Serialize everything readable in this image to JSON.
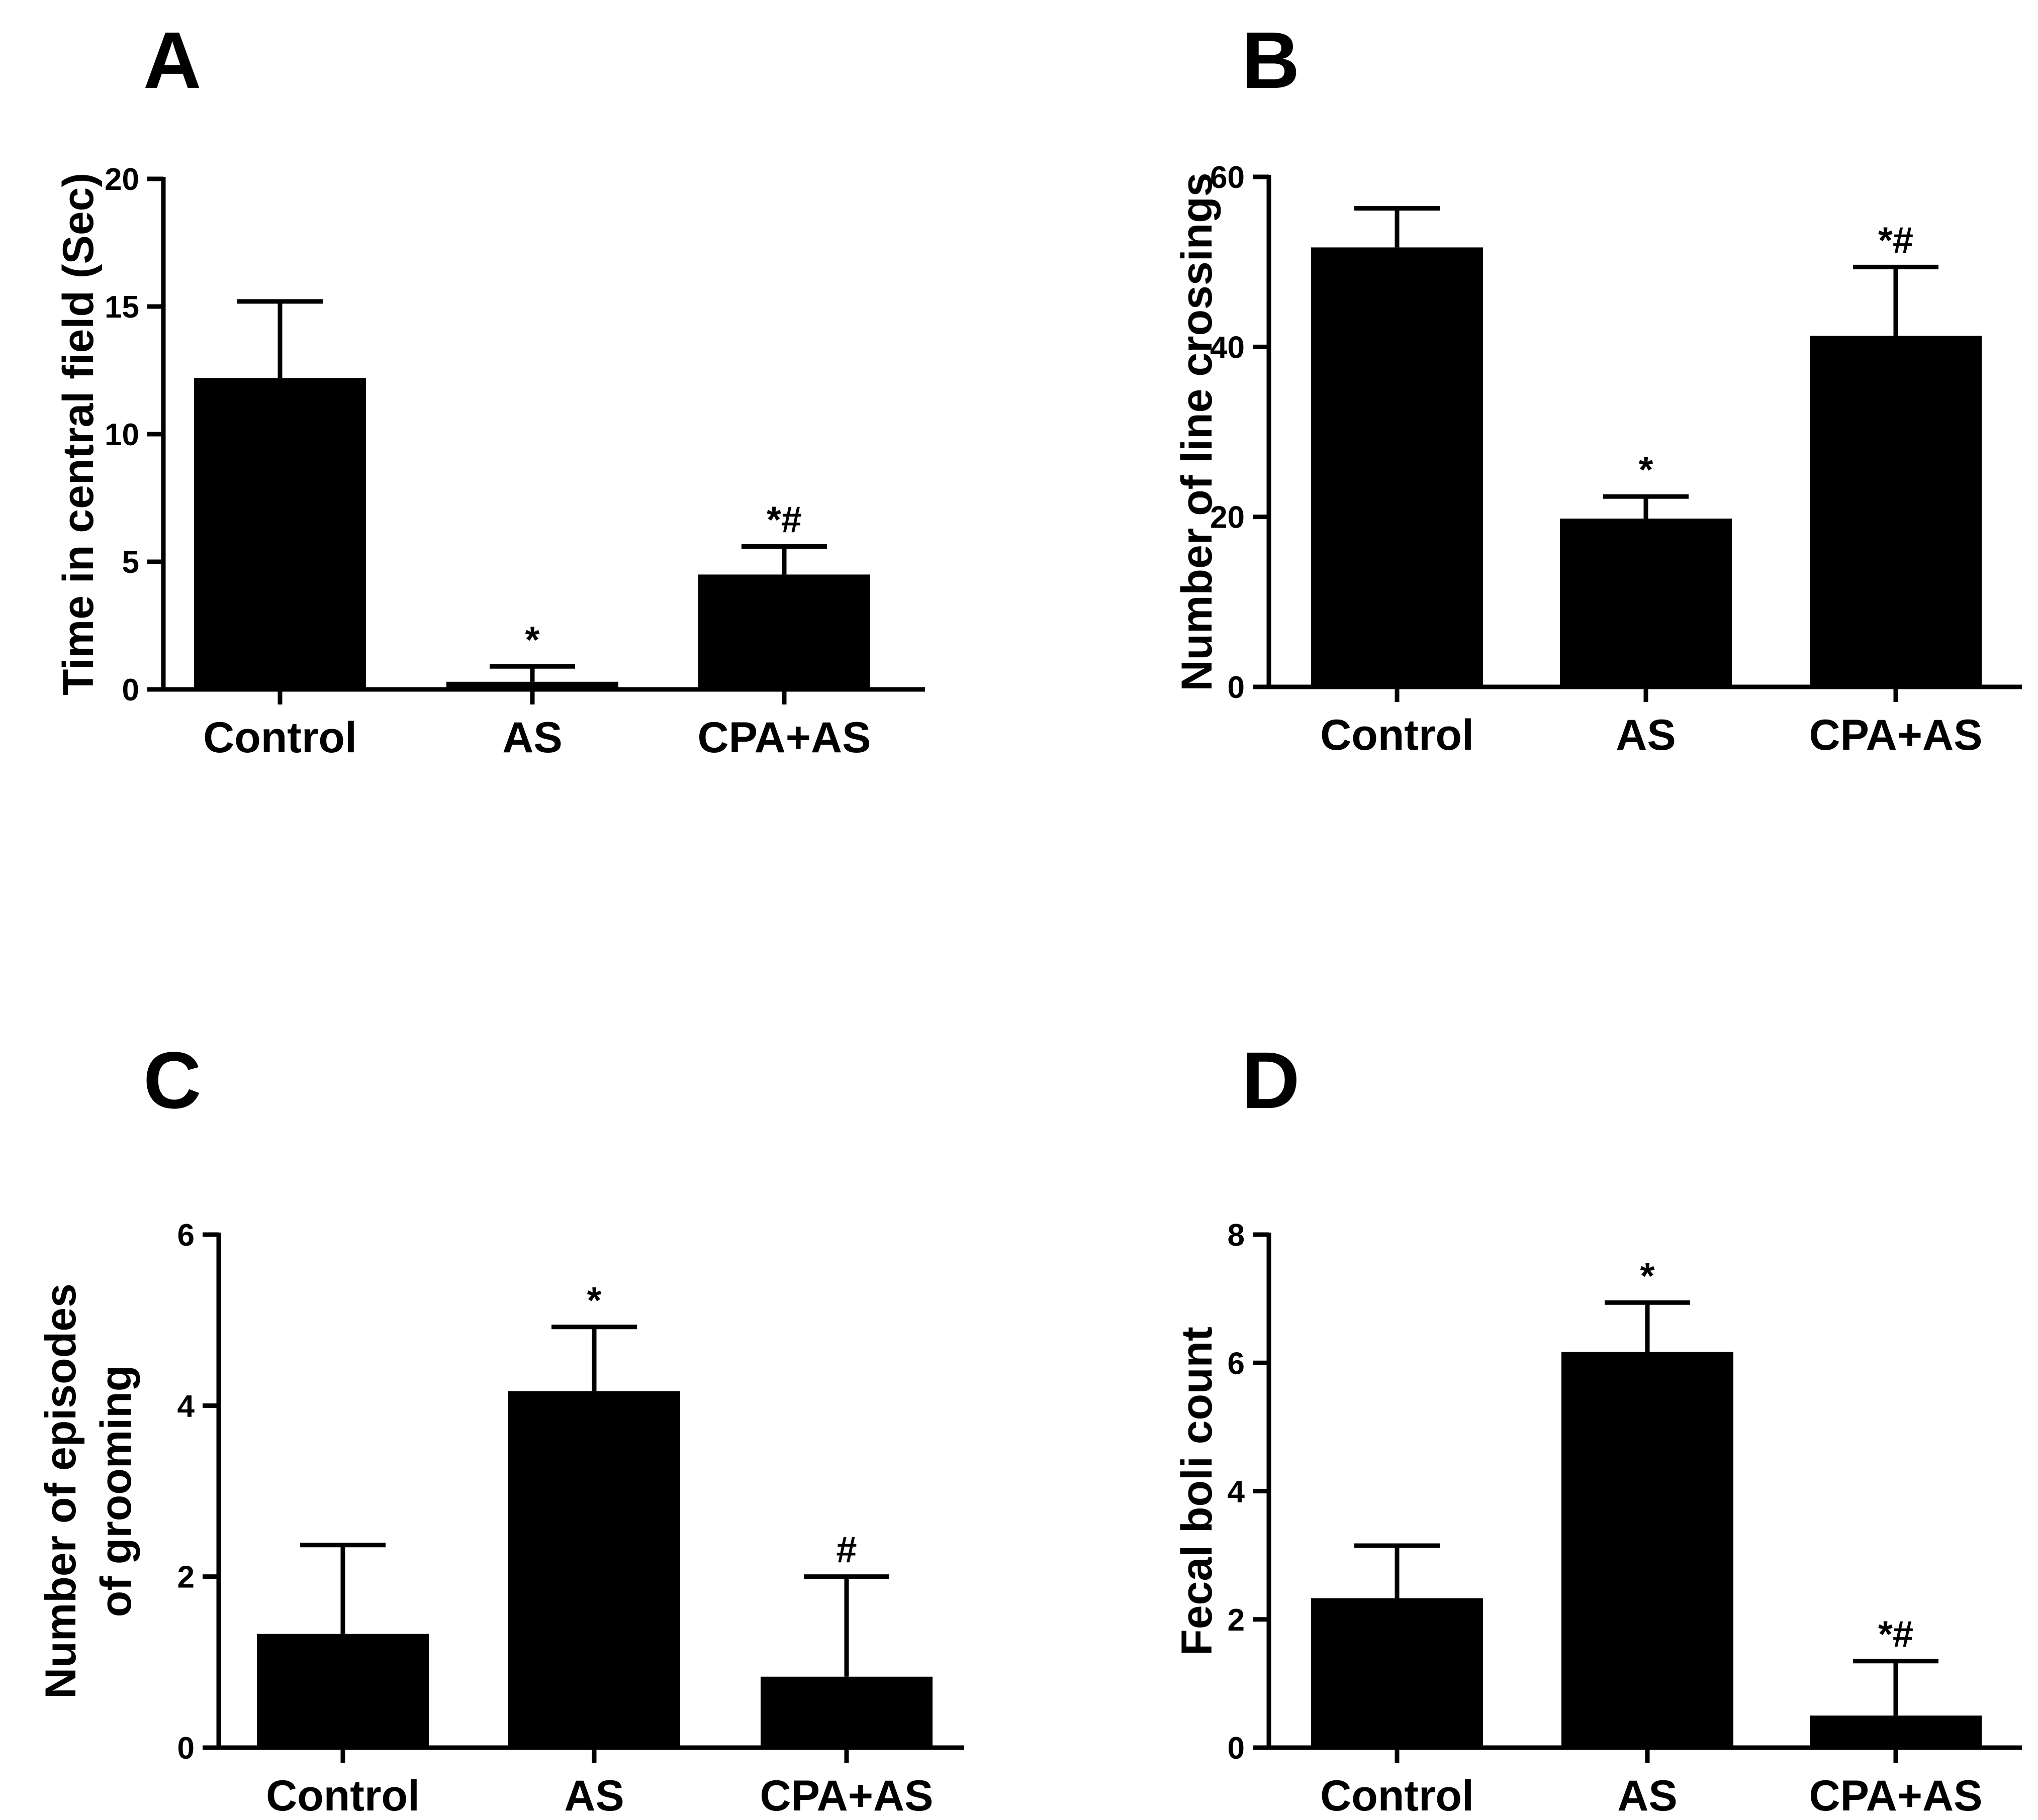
{
  "figure_colors": {
    "bar": "#000000",
    "axis": "#000000",
    "background": "#ffffff"
  },
  "chart_data": [
    {
      "type": "bar",
      "panel": "A",
      "categories": [
        "Control",
        "AS",
        "CPA+AS"
      ],
      "values": [
        12.2,
        0.3,
        4.5
      ],
      "errors": [
        3.0,
        0.6,
        1.1
      ],
      "significance": [
        "",
        "*",
        "*#"
      ],
      "ylabel_lines": [
        "Time in central field (Sec)"
      ],
      "xlabel": "",
      "ylim": [
        0,
        20
      ],
      "yticks": [
        0,
        5,
        10,
        15,
        20
      ],
      "ytick_labels": [
        "0",
        "5",
        "10",
        "15",
        "20"
      ],
      "grid": false,
      "legend": "none"
    },
    {
      "type": "bar",
      "panel": "B",
      "categories": [
        "Control",
        "AS",
        "CPA+AS"
      ],
      "values": [
        51.7,
        19.8,
        41.3
      ],
      "errors": [
        4.6,
        2.6,
        8.1
      ],
      "significance": [
        "",
        "*",
        "*#"
      ],
      "ylabel_lines": [
        "Number of line crossings"
      ],
      "xlabel": "",
      "ylim": [
        0,
        60
      ],
      "yticks": [
        0,
        20,
        40,
        60
      ],
      "ytick_labels": [
        "0",
        "20",
        "40",
        "60"
      ],
      "grid": false,
      "legend": "none"
    },
    {
      "type": "bar",
      "panel": "C",
      "categories": [
        "Control",
        "AS",
        "CPA+AS"
      ],
      "values": [
        1.33,
        4.17,
        0.83
      ],
      "errors": [
        1.04,
        0.75,
        1.17
      ],
      "significance": [
        "",
        "*",
        "#"
      ],
      "ylabel_lines": [
        "Number of episodes",
        "of grooming"
      ],
      "xlabel": "",
      "ylim": [
        0,
        6
      ],
      "yticks": [
        0,
        2,
        4,
        6
      ],
      "ytick_labels": [
        "0",
        "2",
        "4",
        "6"
      ],
      "grid": false,
      "legend": "none"
    },
    {
      "type": "bar",
      "panel": "D",
      "categories": [
        "Control",
        "AS",
        "CPA+AS"
      ],
      "values": [
        2.33,
        6.17,
        0.5
      ],
      "errors": [
        0.82,
        0.77,
        0.85
      ],
      "significance": [
        "",
        "*",
        "*#"
      ],
      "ylabel_lines": [
        "Fecal boli count"
      ],
      "xlabel": "",
      "ylim": [
        0,
        8
      ],
      "yticks": [
        0,
        2,
        4,
        6,
        8
      ],
      "ytick_labels": [
        "0",
        "2",
        "4",
        "6",
        "8"
      ],
      "grid": false,
      "legend": "none"
    }
  ]
}
